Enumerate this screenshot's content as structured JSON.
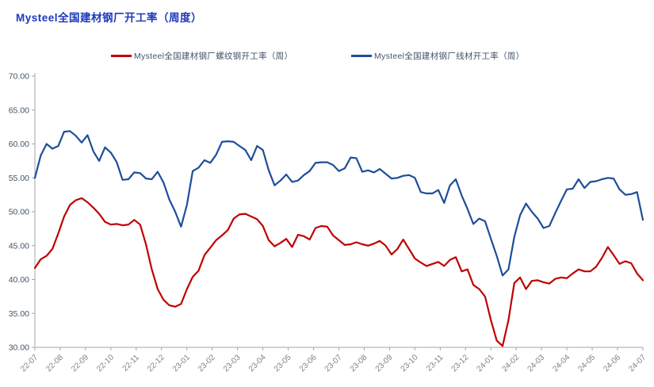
{
  "header": {
    "title": "Mysteel全国建材钢厂开工率（周度）"
  },
  "legend": {
    "items": [
      {
        "id": "rebar",
        "label": "Mysteel全国建材钢厂螺纹钢开工率（周）",
        "color": "#C00000"
      },
      {
        "id": "wire",
        "label": "Mysteel全国建材钢厂线材开工率（周）",
        "color": "#1E4E99"
      }
    ]
  },
  "colors": {
    "title_text": "#1C39BB",
    "rebar_line": "#C00000",
    "wire_line": "#1E4E99",
    "axis_line": "#A6A6A6",
    "y_tick_text": "#44546A",
    "x_tick_text": "#808080"
  },
  "chart_data": {
    "type": "line",
    "title": "Mysteel全国建材钢厂开工率（周度）",
    "frequency": "weekly",
    "grid": false,
    "legend_position": "top",
    "axis_color": "#A6A6A6",
    "y_tick_color": "#44546A",
    "x_tick_color": "#808080",
    "y_axis": {
      "min": 30,
      "max": 70,
      "step": 5,
      "tick_labels": [
        "70.00",
        "65.00",
        "60.00",
        "55.00",
        "50.00",
        "45.00",
        "40.00",
        "35.00",
        "30.00"
      ]
    },
    "x_tick_labels": [
      "22-07",
      "22-08",
      "22-09",
      "22-10",
      "22-11",
      "22-12",
      "23-01",
      "23-02",
      "23-03",
      "23-04",
      "23-05",
      "23-06",
      "23-07",
      "23-08",
      "23-09",
      "23-10",
      "23-11",
      "23-12",
      "24-01",
      "24-02",
      "24-03",
      "24-04",
      "24-05",
      "24-06",
      "24-07"
    ],
    "series": [
      {
        "id": "rebar",
        "name": "Mysteel全国建材钢厂螺纹钢开工率（周）",
        "color": "#C00000",
        "values": [
          41.7,
          43.0,
          43.5,
          44.5,
          46.8,
          49.3,
          51.0,
          51.7,
          52.0,
          51.4,
          50.6,
          49.7,
          48.5,
          48.1,
          48.2,
          48.0,
          48.1,
          48.8,
          48.1,
          45.2,
          41.5,
          38.6,
          37.0,
          36.2,
          36.0,
          36.4,
          38.6,
          40.4,
          41.3,
          43.6,
          44.7,
          45.8,
          46.5,
          47.3,
          49.0,
          49.6,
          49.7,
          49.3,
          48.9,
          47.9,
          45.8,
          44.9,
          45.4,
          46.0,
          44.8,
          46.6,
          46.4,
          45.9,
          47.6,
          47.9,
          47.8,
          46.5,
          45.8,
          45.1,
          45.2,
          45.5,
          45.2,
          45.0,
          45.3,
          45.7,
          45.0,
          43.7,
          44.5,
          45.9,
          44.5,
          43.1,
          42.5,
          42.0,
          42.3,
          42.6,
          42.0,
          42.9,
          43.3,
          41.2,
          41.5,
          39.2,
          38.6,
          37.5,
          34.0,
          31.0,
          30.2,
          34.0,
          39.5,
          40.3,
          38.6,
          39.8,
          39.9,
          39.6,
          39.4,
          40.1,
          40.3,
          40.2,
          40.9,
          41.5,
          41.2,
          41.2,
          41.9,
          43.2,
          44.8,
          43.6,
          42.3,
          42.7,
          42.4,
          40.9,
          39.9
        ]
      },
      {
        "id": "wire",
        "name": "Mysteel全国建材钢厂线材开工率（周）",
        "color": "#1E4E99",
        "values": [
          55.0,
          58.3,
          60.0,
          59.3,
          59.7,
          61.8,
          61.9,
          61.2,
          60.2,
          61.3,
          58.9,
          57.5,
          59.5,
          58.7,
          57.3,
          54.7,
          54.8,
          55.8,
          55.7,
          54.9,
          54.8,
          55.9,
          54.3,
          51.8,
          50.0,
          47.8,
          51.0,
          56.0,
          56.5,
          57.6,
          57.2,
          58.4,
          60.3,
          60.4,
          60.3,
          59.7,
          59.1,
          57.6,
          59.7,
          59.1,
          56.1,
          53.9,
          54.6,
          55.5,
          54.4,
          54.6,
          55.4,
          56.0,
          57.2,
          57.3,
          57.3,
          56.9,
          56.0,
          56.4,
          58.0,
          57.9,
          55.9,
          56.1,
          55.8,
          56.3,
          55.6,
          54.9,
          55.0,
          55.3,
          55.4,
          55.0,
          52.9,
          52.7,
          52.7,
          53.2,
          51.3,
          53.9,
          54.8,
          52.4,
          50.4,
          48.2,
          49.0,
          48.6,
          46.0,
          43.5,
          40.6,
          41.5,
          46.3,
          49.5,
          51.2,
          50.0,
          49.0,
          47.6,
          47.9,
          49.8,
          51.6,
          53.3,
          53.4,
          54.8,
          53.5,
          54.4,
          54.5,
          54.8,
          55.0,
          54.9,
          53.3,
          52.5,
          52.6,
          52.9,
          48.8
        ]
      }
    ]
  }
}
